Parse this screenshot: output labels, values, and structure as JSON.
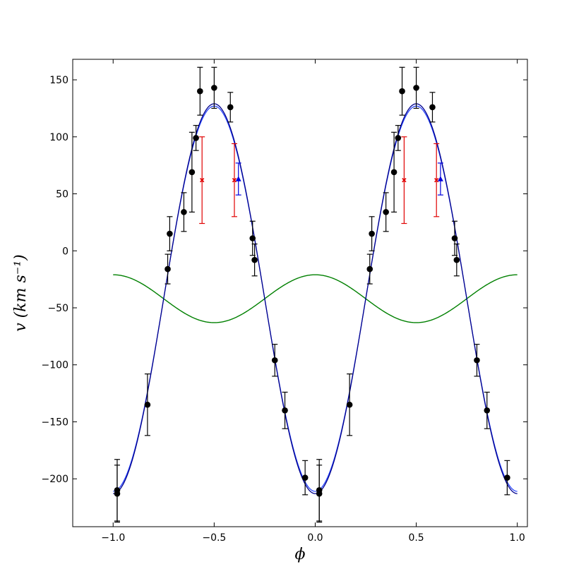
{
  "chart_data": {
    "type": "scatter",
    "title": "",
    "xlabel": "ϕ",
    "ylabel": "v (km s⁻¹)",
    "xlim": [
      -1.2,
      1.05
    ],
    "ylim": [
      -242,
      168
    ],
    "x_ticks": [
      -1.0,
      -0.5,
      0.0,
      0.5,
      1.0
    ],
    "x_tick_labels": [
      "−1.0",
      "−0.5",
      "0.0",
      "0.5",
      "1.0"
    ],
    "y_ticks": [
      -200,
      -150,
      -100,
      -50,
      0,
      50,
      100,
      150
    ],
    "y_tick_labels": [
      "−200",
      "−150",
      "−100",
      "−50",
      "0",
      "50",
      "100",
      "150"
    ],
    "grid": false,
    "legend": "none",
    "colors": {
      "black_points": "#000000",
      "red_points": "#e00000",
      "blue_points": "#0000dd",
      "fit_curve": "#00008b",
      "fit_curve_alt": "#1e3cff",
      "companion_curve": "#008000"
    },
    "curves": {
      "fit": {
        "gamma": -42,
        "K": 171,
        "phase_max": 0.5
      },
      "fit_alt": {
        "gamma": -42,
        "K": 169,
        "phase_max": 0.5
      },
      "companion": {
        "gamma": -42,
        "K": 21,
        "phase_max": 0.0
      }
    },
    "black_points": [
      {
        "x": -0.98,
        "y": -210,
        "err": 27
      },
      {
        "x": -0.98,
        "y": -213,
        "err": 25
      },
      {
        "x": -0.83,
        "y": -135,
        "err": 27
      },
      {
        "x": -0.73,
        "y": -16,
        "err": 13
      },
      {
        "x": -0.72,
        "y": 15,
        "err": 15
      },
      {
        "x": -0.65,
        "y": 34,
        "err": 17
      },
      {
        "x": -0.61,
        "y": 69,
        "err": 35
      },
      {
        "x": -0.59,
        "y": 99,
        "err": 11
      },
      {
        "x": -0.57,
        "y": 140,
        "err": 21
      },
      {
        "x": -0.5,
        "y": 143,
        "err": 18
      },
      {
        "x": -0.42,
        "y": 126,
        "err": 13
      },
      {
        "x": -0.31,
        "y": 11,
        "err": 15
      },
      {
        "x": -0.3,
        "y": -8,
        "err": 14
      },
      {
        "x": -0.2,
        "y": -96,
        "err": 14
      },
      {
        "x": -0.15,
        "y": -140,
        "err": 16
      },
      {
        "x": -0.05,
        "y": -199,
        "err": 15
      },
      {
        "x": 0.02,
        "y": -210,
        "err": 27
      },
      {
        "x": 0.02,
        "y": -213,
        "err": 25
      },
      {
        "x": 0.17,
        "y": -135,
        "err": 27
      },
      {
        "x": 0.27,
        "y": -16,
        "err": 13
      },
      {
        "x": 0.28,
        "y": 15,
        "err": 15
      },
      {
        "x": 0.35,
        "y": 34,
        "err": 17
      },
      {
        "x": 0.39,
        "y": 69,
        "err": 35
      },
      {
        "x": 0.41,
        "y": 99,
        "err": 11
      },
      {
        "x": 0.43,
        "y": 140,
        "err": 21
      },
      {
        "x": 0.5,
        "y": 143,
        "err": 18
      },
      {
        "x": 0.58,
        "y": 126,
        "err": 13
      },
      {
        "x": 0.69,
        "y": 11,
        "err": 15
      },
      {
        "x": 0.7,
        "y": -8,
        "err": 14
      },
      {
        "x": 0.8,
        "y": -96,
        "err": 14
      },
      {
        "x": 0.85,
        "y": -140,
        "err": 16
      },
      {
        "x": 0.95,
        "y": -199,
        "err": 15
      }
    ],
    "red_points": [
      {
        "x": -0.56,
        "y": 62,
        "err": 38
      },
      {
        "x": -0.4,
        "y": 62,
        "err": 32
      },
      {
        "x": 0.44,
        "y": 62,
        "err": 38
      },
      {
        "x": 0.6,
        "y": 62,
        "err": 32
      }
    ],
    "blue_points": [
      {
        "x": -0.38,
        "y": 63,
        "err": 14
      },
      {
        "x": 0.62,
        "y": 63,
        "err": 14
      }
    ]
  }
}
